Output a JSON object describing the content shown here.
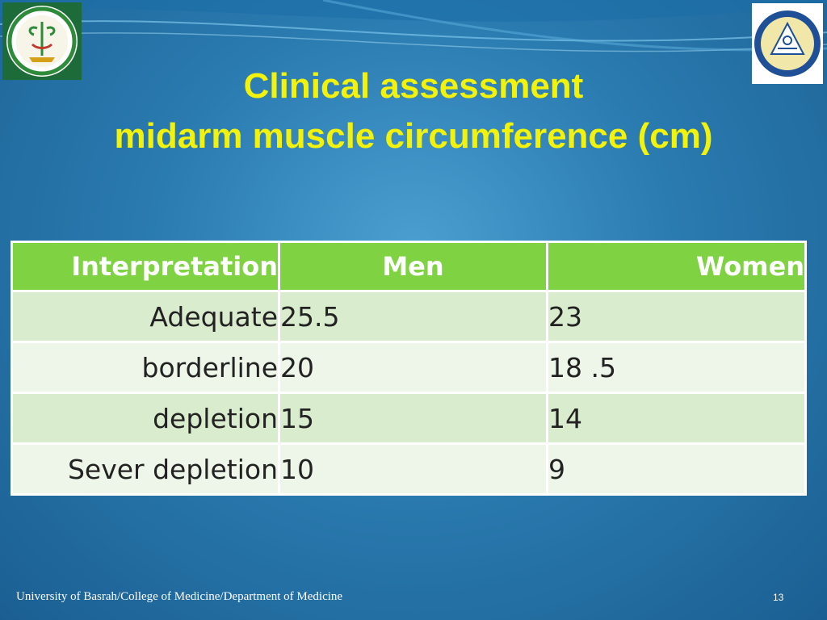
{
  "slide": {
    "title_line1": "Clinical assessment",
    "title_line2": "midarm muscle circumference (cm)"
  },
  "colors": {
    "title": "#f2f20a",
    "header_bg": "#7fd342",
    "row_dark": "#d9eccd",
    "row_light": "#edf6e8"
  },
  "table": {
    "headers": [
      "Interpretation",
      "Men",
      "Women"
    ],
    "rows": [
      [
        "Adequate",
        "25.5",
        "23"
      ],
      [
        "borderline",
        "20",
        "18 .5"
      ],
      [
        "depletion",
        "15",
        "14"
      ],
      [
        "Sever depletion",
        "10",
        "9"
      ]
    ]
  },
  "logos": {
    "left": "college-of-medicine-emblem",
    "right": "university-of-basrah-seal"
  },
  "footer": {
    "text": "University of Basrah/College of Medicine/Department of Medicine",
    "page_number": "13"
  }
}
